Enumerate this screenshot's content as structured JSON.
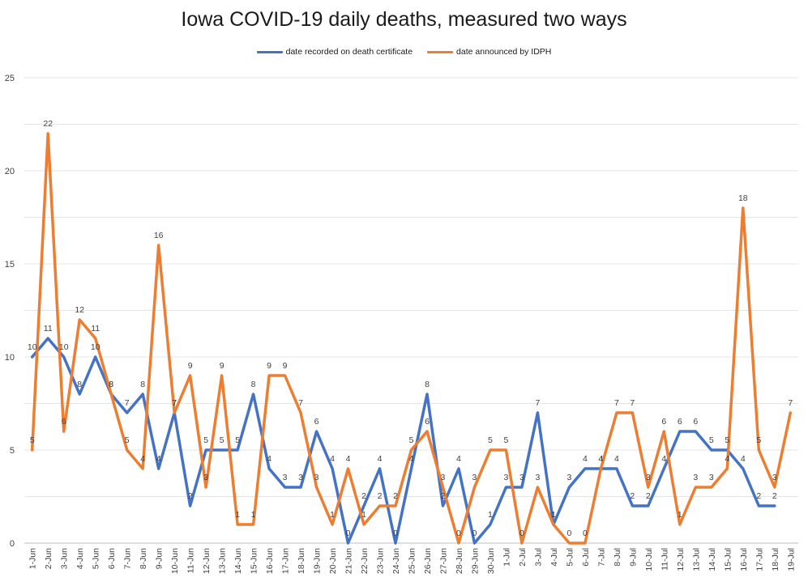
{
  "chart_data": {
    "type": "line",
    "title": "Iowa COVID-19 daily deaths, measured two ways",
    "ylim": [
      0,
      25
    ],
    "yticks": [
      0,
      5,
      10,
      15,
      20,
      25
    ],
    "grid": true,
    "legend_position": "top-center",
    "categories": [
      "1-Jun",
      "2-Jun",
      "3-Jun",
      "4-Jun",
      "5-Jun",
      "6-Jun",
      "7-Jun",
      "8-Jun",
      "9-Jun",
      "10-Jun",
      "11-Jun",
      "12-Jun",
      "13-Jun",
      "14-Jun",
      "15-Jun",
      "16-Jun",
      "17-Jun",
      "18-Jun",
      "19-Jun",
      "20-Jun",
      "21-Jun",
      "22-Jun",
      "23-Jun",
      "24-Jun",
      "25-Jun",
      "26-Jun",
      "27-Jun",
      "28-Jun",
      "29-Jun",
      "30-Jun",
      "1-Jul",
      "2-Jul",
      "3-Jul",
      "4-Jul",
      "5-Jul",
      "6-Jul",
      "7-Jul",
      "8-Jul",
      "9-Jul",
      "10-Jul",
      "11-Jul",
      "12-Jul",
      "13-Jul",
      "14-Jul",
      "15-Jul",
      "16-Jul",
      "17-Jul",
      "18-Jul",
      "19-Jul"
    ],
    "series": [
      {
        "name": "date recorded on death certificate",
        "color": "#4472C4",
        "values": [
          10,
          11,
          10,
          8,
          10,
          8,
          7,
          8,
          4,
          7,
          2,
          5,
          5,
          5,
          8,
          4,
          3,
          3,
          6,
          4,
          0,
          2,
          4,
          0,
          4,
          8,
          2,
          4,
          0,
          1,
          3,
          3,
          7,
          1,
          3,
          4,
          4,
          4,
          2,
          2,
          4,
          6,
          6,
          5,
          5,
          4,
          2,
          2,
          null
        ]
      },
      {
        "name": "date announced by IDPH",
        "color": "#ED7D31",
        "values": [
          5,
          22,
          6,
          12,
          11,
          8,
          5,
          4,
          16,
          7,
          9,
          3,
          9,
          1,
          1,
          9,
          9,
          7,
          3,
          1,
          4,
          1,
          2,
          2,
          5,
          6,
          3,
          0,
          3,
          5,
          5,
          0,
          3,
          1,
          0,
          0,
          4,
          7,
          7,
          3,
          6,
          1,
          3,
          3,
          4,
          18,
          5,
          3,
          7
        ]
      }
    ]
  }
}
